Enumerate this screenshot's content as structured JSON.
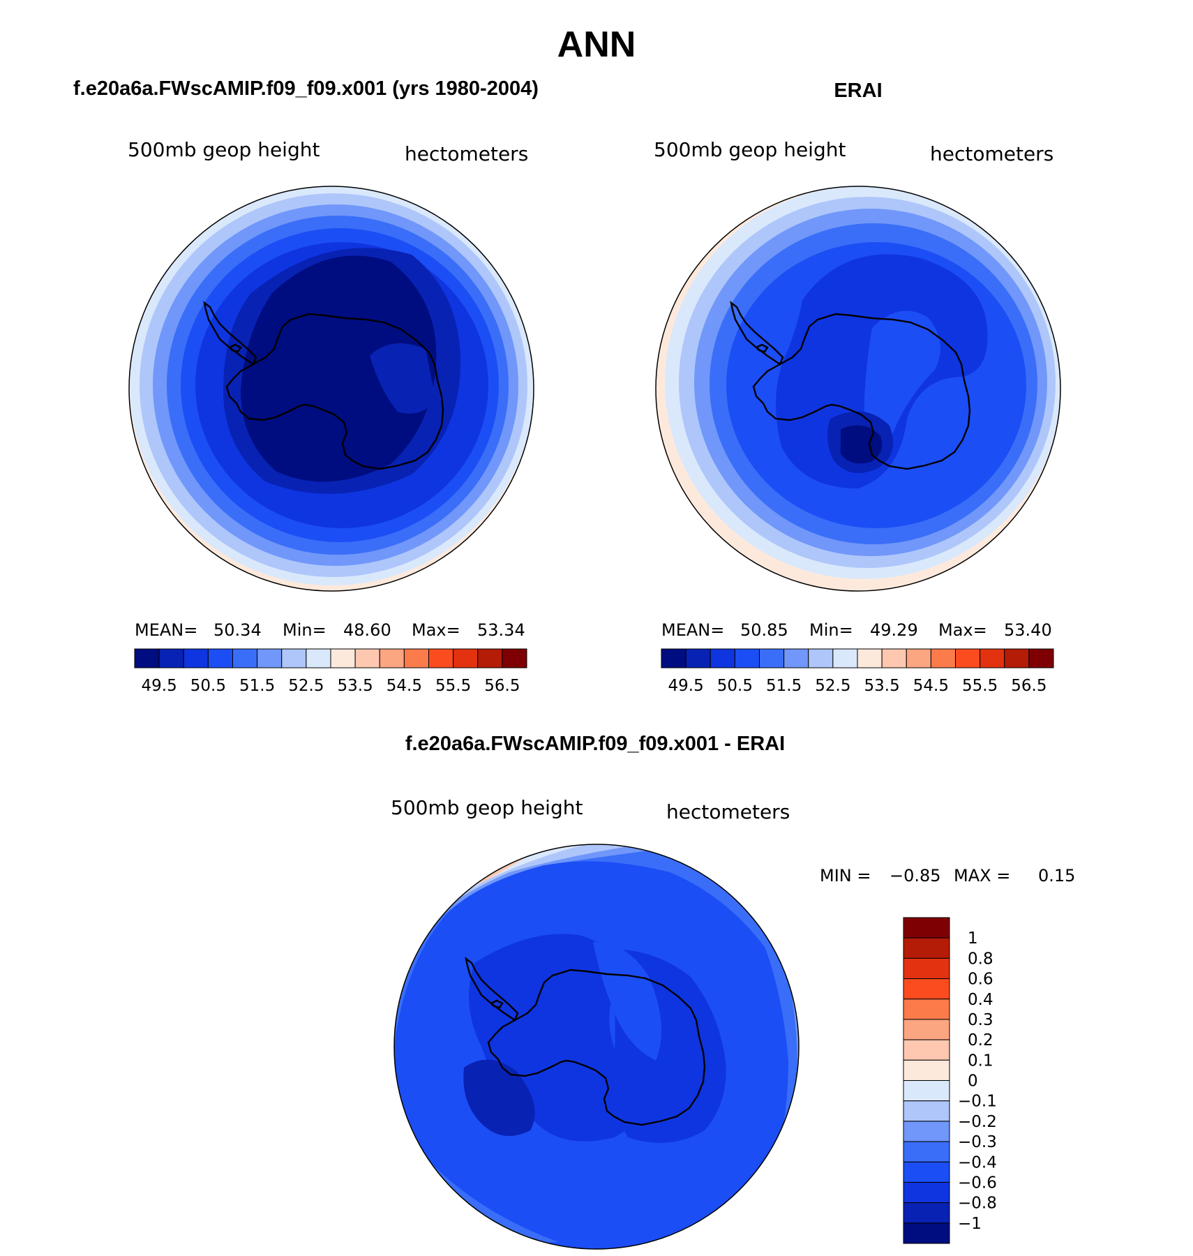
{
  "figure": {
    "title": "ANN",
    "season": "ANN"
  },
  "colors": {
    "abs_levels": [
      "#000d80",
      "#0822b4",
      "#0f35e0",
      "#1c4ef5",
      "#3a6ef8",
      "#7097f9",
      "#aec6fa",
      "#dae8fc",
      "#fde9dc",
      "#fdc7b0",
      "#fca581",
      "#fb7b4b",
      "#fb4c1f",
      "#e2320f",
      "#b51c08",
      "#7f0003"
    ],
    "diff_levels": [
      "#7f0003",
      "#b51c08",
      "#e2320f",
      "#fb4c1f",
      "#fb7b4b",
      "#fca581",
      "#fdc7b0",
      "#fde9dc",
      "#dae8fc",
      "#aec6fa",
      "#7097f9",
      "#3a6ef8",
      "#1c4ef5",
      "#0f35e0",
      "#0822b4",
      "#000d80"
    ],
    "coastline": "#000000"
  },
  "chart_data": [
    {
      "type": "map",
      "projection": "south-polar stereographic",
      "title": "f.e20a6a.FWscAMIP.f09_f09.x001 (yrs 1980-2004)",
      "left_label": "500mb geop height",
      "right_label": "hectometers",
      "stats": {
        "mean_label": "MEAN=",
        "mean": "50.34",
        "min_label": "Min=",
        "min": "48.60",
        "max_label": "Max=",
        "max": "53.34"
      },
      "colorbar_ticks": [
        "49.5",
        "50.5",
        "51.5",
        "52.5",
        "53.5",
        "54.5",
        "55.5",
        "56.5"
      ],
      "contour_levels_hm": [
        48.6,
        49.5,
        50,
        50.5,
        51,
        51.5,
        52,
        52.5,
        53
      ]
    },
    {
      "type": "map",
      "projection": "south-polar stereographic",
      "title": "ERAI",
      "left_label": "500mb geop height",
      "right_label": "hectometers",
      "stats": {
        "mean_label": "MEAN=",
        "mean": "50.85",
        "min_label": "Min=",
        "min": "49.29",
        "max_label": "Max=",
        "max": "53.40"
      },
      "colorbar_ticks": [
        "49.5",
        "50.5",
        "51.5",
        "52.5",
        "53.5",
        "54.5",
        "55.5",
        "56.5"
      ],
      "contour_levels_hm": [
        49.29,
        50,
        50.5,
        51,
        51.5,
        52,
        52.5,
        53,
        53.4
      ]
    },
    {
      "type": "map",
      "projection": "south-polar stereographic",
      "title": "f.e20a6a.FWscAMIP.f09_f09.x001 - ERAI",
      "left_label": "500mb geop height",
      "right_label": "hectometers",
      "stats": {
        "min_label": "MIN =",
        "min": "−0.85",
        "max_label": "MAX =",
        "max": "0.15"
      },
      "colorbar_ticks": [
        "1",
        "0.8",
        "0.6",
        "0.4",
        "0.3",
        "0.2",
        "0.1",
        "0",
        "−0.1",
        "−0.2",
        "−0.3",
        "−0.4",
        "−0.6",
        "−0.8",
        "−1"
      ],
      "difference_range": [
        -0.85,
        0.15
      ]
    }
  ]
}
